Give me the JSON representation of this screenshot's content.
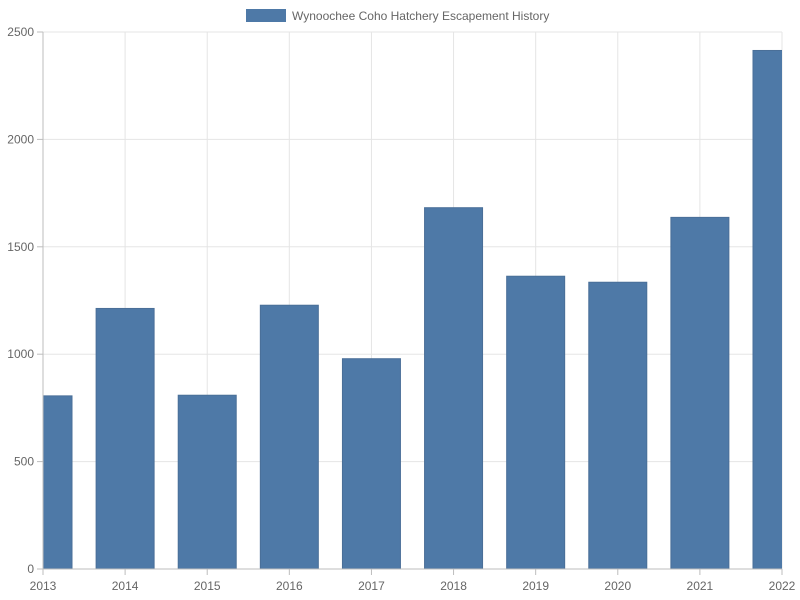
{
  "chart_data": {
    "type": "bar",
    "title": "",
    "xlabel": "",
    "ylabel": "",
    "categories": [
      "2013",
      "2014",
      "2015",
      "2016",
      "2017",
      "2018",
      "2019",
      "2020",
      "2021",
      "2022"
    ],
    "series": [
      {
        "name": "Wynoochee Coho Hatchery Escapement History",
        "color": "#4e79a7",
        "values": [
          806,
          1213,
          809,
          1228,
          979,
          1682,
          1363,
          1335,
          1637,
          2414
        ]
      }
    ],
    "ylim": [
      0,
      2500
    ],
    "yticks": [
      "0",
      "500",
      "1000",
      "1500",
      "2000",
      "2500"
    ],
    "grid": true,
    "legend": "top-center"
  }
}
